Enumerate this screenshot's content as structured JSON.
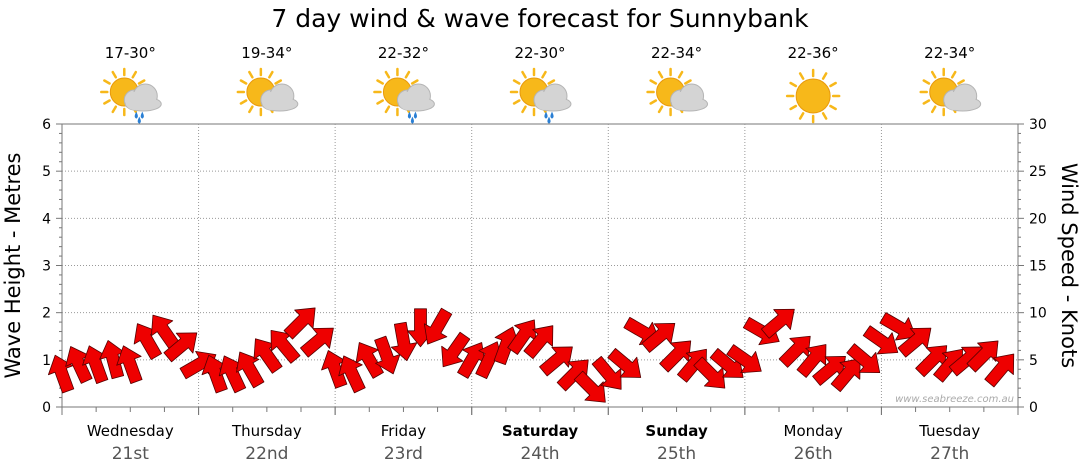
{
  "title": "7 day wind & wave forecast for Sunnybank",
  "credit": "www.seabreeze.com.au",
  "colors": {
    "wind_arrow": "#ee0000",
    "arrow_outline": "#550000",
    "grid": "#999999",
    "sun": "#f7b81a",
    "cloud": "#d4d4d4",
    "rain": "#2a7fd4"
  },
  "days": [
    {
      "name": "Wednesday",
      "date": "21st",
      "bold": false,
      "temp": "17-30°",
      "weather_icon": "sun-cloud-rain-icon"
    },
    {
      "name": "Thursday",
      "date": "22nd",
      "bold": false,
      "temp": "19-34°",
      "weather_icon": "sun-cloud-icon"
    },
    {
      "name": "Friday",
      "date": "23rd",
      "bold": false,
      "temp": "22-32°",
      "weather_icon": "sun-cloud-rain-icon"
    },
    {
      "name": "Saturday",
      "date": "24th",
      "bold": true,
      "temp": "22-30°",
      "weather_icon": "sun-cloud-rain-icon"
    },
    {
      "name": "Sunday",
      "date": "25th",
      "bold": true,
      "temp": "22-34°",
      "weather_icon": "sun-cloud-icon"
    },
    {
      "name": "Monday",
      "date": "26th",
      "bold": false,
      "temp": "22-36°",
      "weather_icon": "sun-icon"
    },
    {
      "name": "Tuesday",
      "date": "27th",
      "bold": false,
      "temp": "22-34°",
      "weather_icon": "sun-cloud-icon"
    }
  ],
  "chart_data": {
    "type": "line",
    "title": "7 day wind & wave forecast for Sunnybank",
    "ylabel_left": "Wave Height - Metres",
    "ylabel_right": "Wind Speed - Knots",
    "ylim_left": [
      0,
      6
    ],
    "ylim_right": [
      0,
      30
    ],
    "yticks_left": [
      "0",
      "1",
      "2",
      "3",
      "4",
      "5",
      "6"
    ],
    "yticks_right": [
      "0",
      "5",
      "10",
      "15",
      "20",
      "25",
      "30"
    ],
    "x_unit": "day index (0 = start of Wednesday 21st)",
    "grid": true,
    "series": [
      {
        "name": "Wind Speed - Knots",
        "x": [
          0.0,
          0.125,
          0.25,
          0.375,
          0.5,
          0.625,
          0.75,
          0.875,
          1.0,
          1.125,
          1.25,
          1.375,
          1.5,
          1.625,
          1.75,
          1.875,
          2.0,
          2.125,
          2.25,
          2.375,
          2.5,
          2.625,
          2.75,
          2.875,
          3.0,
          3.125,
          3.25,
          3.375,
          3.5,
          3.625,
          3.75,
          3.875,
          4.0,
          4.125,
          4.25,
          4.375,
          4.5,
          4.625,
          4.75,
          4.875,
          5.0,
          5.125,
          5.25,
          5.375,
          5.5,
          5.625,
          5.75,
          5.875,
          6.0,
          6.125,
          6.25,
          6.375,
          6.5,
          6.625,
          6.75,
          6.875
        ],
        "values": [
          3.5,
          4.5,
          4.5,
          5.0,
          4.5,
          7.0,
          8.0,
          6.5,
          4.5,
          3.5,
          3.5,
          4.0,
          5.5,
          6.5,
          9.0,
          7.0,
          4.0,
          3.5,
          5.0,
          5.5,
          7.0,
          8.5,
          8.5,
          6.0,
          5.0,
          5.0,
          6.5,
          7.5,
          7.0,
          5.0,
          3.5,
          2.0,
          3.5,
          4.5,
          8.0,
          7.5,
          5.5,
          4.5,
          3.5,
          4.5,
          5.0,
          8.0,
          9.0,
          6.0,
          5.0,
          4.0,
          3.5,
          5.0,
          7.0,
          8.5,
          7.0,
          5.0,
          4.5,
          5.0,
          5.5,
          4.0
        ],
        "direction_deg": [
          250,
          245,
          250,
          255,
          250,
          240,
          235,
          320,
          330,
          250,
          245,
          240,
          235,
          230,
          315,
          320,
          250,
          245,
          240,
          70,
          80,
          90,
          120,
          125,
          300,
          295,
          290,
          305,
          310,
          320,
          315,
          45,
          50,
          40,
          30,
          320,
          315,
          310,
          45,
          40,
          35,
          30,
          320,
          315,
          310,
          320,
          310,
          40,
          35,
          30,
          320,
          315,
          310,
          320,
          315,
          310
        ]
      }
    ]
  }
}
